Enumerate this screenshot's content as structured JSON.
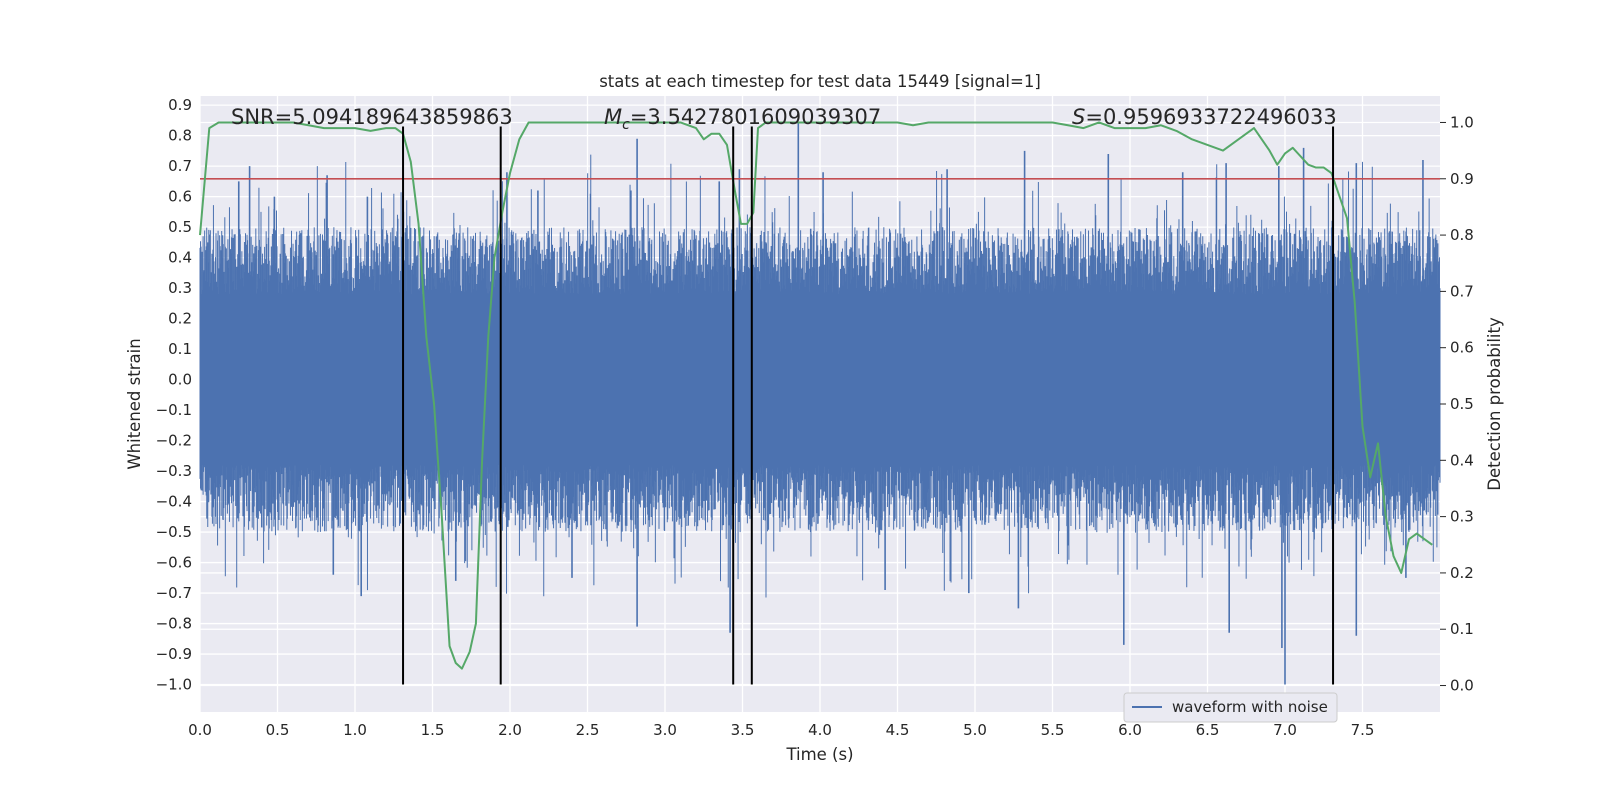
{
  "chart_data": {
    "type": "line",
    "title": "stats at each timestep for test data 15449 [signal=1]",
    "xlabel": "Time (s)",
    "ylabel": "Whitened strain",
    "y2label": "Detection probability",
    "xlim": [
      0.0,
      8.0
    ],
    "ylim": [
      -1.09,
      0.93
    ],
    "y2lim": [
      -0.047,
      1.047
    ],
    "xticks": [
      "0.0",
      "0.5",
      "1.0",
      "1.5",
      "2.0",
      "2.5",
      "3.0",
      "3.5",
      "4.0",
      "4.5",
      "5.0",
      "5.5",
      "6.0",
      "6.5",
      "7.0",
      "7.5"
    ],
    "yticks": [
      "0.9",
      "0.8",
      "0.7",
      "0.6",
      "0.5",
      "0.4",
      "0.3",
      "0.2",
      "0.1",
      "0.0",
      "−0.1",
      "−0.2",
      "−0.3",
      "−0.4",
      "−0.5",
      "−0.6",
      "−0.7",
      "−0.8",
      "−0.9",
      "−1.0"
    ],
    "y2ticks": [
      "1.0",
      "0.9",
      "0.8",
      "0.7",
      "0.6",
      "0.5",
      "0.4",
      "0.3",
      "0.2",
      "0.1",
      "0.0"
    ],
    "annotations": {
      "snr": "SNR=5.094189643859863",
      "mc": "=3.5427801609039307",
      "mc_symbol": "M",
      "mc_sub": "c",
      "s": "=0.9596933722496033",
      "s_symbol": "S"
    },
    "legend": {
      "label": "waveform with noise",
      "placement": "lower-right"
    },
    "grid": true,
    "series": [
      {
        "name": "waveform with noise",
        "color": "#4c72b0",
        "axis": "left",
        "kind": "noisy-waveform",
        "duration": 8.0,
        "core_envelope": 0.28,
        "spike_peaks": [
          {
            "t": 0.25,
            "y": 0.65
          },
          {
            "t": 0.32,
            "y": 0.7
          },
          {
            "t": 0.48,
            "y": 0.6
          },
          {
            "t": 0.82,
            "y": 0.67
          },
          {
            "t": 1.08,
            "y": 0.6
          },
          {
            "t": 1.98,
            "y": 0.68
          },
          {
            "t": 2.18,
            "y": 0.62
          },
          {
            "t": 2.78,
            "y": 0.62
          },
          {
            "t": 2.82,
            "y": 0.79
          },
          {
            "t": 3.35,
            "y": 0.65
          },
          {
            "t": 3.48,
            "y": 0.69
          },
          {
            "t": 3.86,
            "y": 0.84
          },
          {
            "t": 4.02,
            "y": 0.68
          },
          {
            "t": 4.82,
            "y": 0.69
          },
          {
            "t": 5.32,
            "y": 0.75
          },
          {
            "t": 5.86,
            "y": 0.74
          },
          {
            "t": 6.34,
            "y": 0.68
          },
          {
            "t": 6.62,
            "y": 0.71
          },
          {
            "t": 6.96,
            "y": 0.7
          },
          {
            "t": 7.12,
            "y": 0.76
          },
          {
            "t": 7.46,
            "y": 0.71
          },
          {
            "t": 7.89,
            "y": 0.72
          },
          {
            "t": 0.86,
            "y": -0.64
          },
          {
            "t": 1.04,
            "y": -0.71
          },
          {
            "t": 1.65,
            "y": -0.66
          },
          {
            "t": 2.4,
            "y": -0.65
          },
          {
            "t": 2.82,
            "y": -0.81
          },
          {
            "t": 3.42,
            "y": -0.83
          },
          {
            "t": 4.42,
            "y": -0.69
          },
          {
            "t": 4.96,
            "y": -0.7
          },
          {
            "t": 5.28,
            "y": -0.75
          },
          {
            "t": 5.96,
            "y": -0.87
          },
          {
            "t": 6.64,
            "y": -0.83
          },
          {
            "t": 6.98,
            "y": -0.88
          },
          {
            "t": 7.0,
            "y": -1.0
          },
          {
            "t": 7.46,
            "y": -0.84
          },
          {
            "t": 7.78,
            "y": -0.65
          }
        ]
      },
      {
        "name": "",
        "color": "#55a868",
        "axis": "right",
        "x": [
          0.0,
          0.06,
          0.12,
          0.2,
          0.4,
          0.6,
          0.7,
          0.8,
          0.9,
          1.0,
          1.1,
          1.2,
          1.26,
          1.31,
          1.36,
          1.41,
          1.46,
          1.51,
          1.56,
          1.61,
          1.65,
          1.69,
          1.74,
          1.78,
          1.82,
          1.86,
          1.9,
          1.95,
          2.0,
          2.06,
          2.12,
          2.3,
          2.5,
          2.7,
          2.9,
          3.1,
          3.2,
          3.25,
          3.3,
          3.35,
          3.4,
          3.45,
          3.49,
          3.53,
          3.57,
          3.6,
          3.65,
          3.7,
          4.0,
          4.5,
          4.6,
          4.7,
          5.0,
          5.5,
          5.6,
          5.7,
          5.8,
          5.9,
          6.0,
          6.1,
          6.2,
          6.3,
          6.4,
          6.5,
          6.6,
          6.7,
          6.8,
          6.85,
          6.9,
          6.95,
          7.0,
          7.05,
          7.1,
          7.15,
          7.2,
          7.25,
          7.3,
          7.35,
          7.4,
          7.45,
          7.5,
          7.55,
          7.6,
          7.65,
          7.7,
          7.75,
          7.8,
          7.85,
          7.9,
          7.95
        ],
        "values": [
          0.8,
          0.99,
          1.0,
          1.0,
          1.0,
          1.0,
          0.995,
          0.99,
          0.99,
          0.99,
          0.985,
          0.99,
          0.99,
          0.98,
          0.93,
          0.82,
          0.62,
          0.5,
          0.3,
          0.07,
          0.04,
          0.03,
          0.06,
          0.11,
          0.4,
          0.62,
          0.76,
          0.84,
          0.91,
          0.97,
          1.0,
          1.0,
          1.0,
          1.0,
          1.0,
          1.0,
          0.99,
          0.97,
          0.98,
          0.98,
          0.96,
          0.88,
          0.82,
          0.82,
          0.84,
          0.99,
          1.0,
          1.0,
          1.0,
          1.0,
          0.995,
          1.0,
          1.0,
          1.0,
          0.995,
          0.99,
          1.0,
          0.99,
          0.99,
          0.99,
          0.995,
          0.985,
          0.97,
          0.96,
          0.95,
          0.97,
          0.99,
          0.97,
          0.95,
          0.925,
          0.945,
          0.955,
          0.94,
          0.925,
          0.92,
          0.92,
          0.91,
          0.87,
          0.83,
          0.68,
          0.46,
          0.37,
          0.43,
          0.3,
          0.23,
          0.2,
          0.26,
          0.27,
          0.26,
          0.25
        ]
      }
    ],
    "threshold": {
      "value": 0.9,
      "axis": "right",
      "color": "#c44e52"
    },
    "vlines": [
      1.31,
      1.94,
      3.44,
      3.56,
      7.31
    ],
    "vline_y_range": [
      -1.0,
      0.83
    ]
  }
}
